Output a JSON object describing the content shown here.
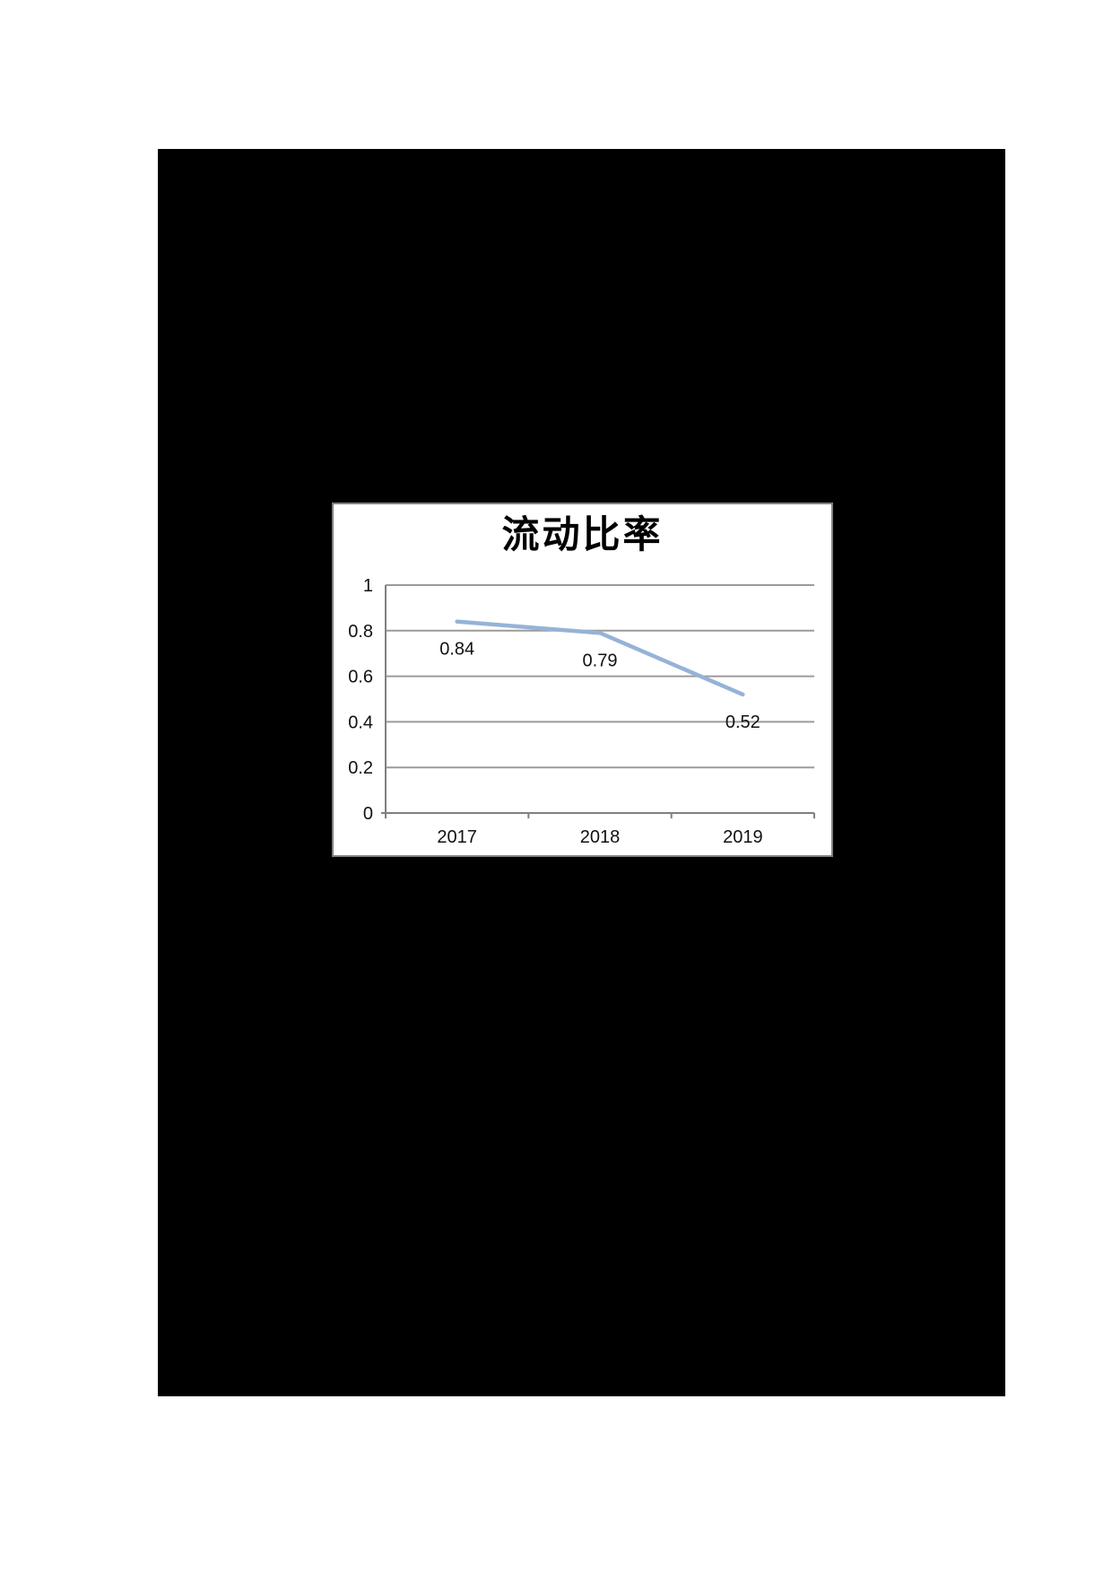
{
  "page": {
    "background_color": "#ffffff"
  },
  "image_block": {
    "background_color": "#000000"
  },
  "chart": {
    "panel_background": "#ffffff",
    "panel_border_color": "#7f7f7f",
    "axis_color": "#7f7f7f",
    "gridline_color": "#9b9b9b",
    "text_color": "#111111",
    "line_color": "#95B3D7"
  },
  "chart_data": {
    "type": "line",
    "title": "流动比率",
    "categories": [
      "2017",
      "2018",
      "2019"
    ],
    "values": [
      0.84,
      0.79,
      0.52
    ],
    "data_labels": [
      "0.84",
      "0.79",
      "0.52"
    ],
    "series": [
      {
        "name": "流动比率",
        "values": [
          0.84,
          0.79,
          0.52
        ]
      }
    ],
    "xlabel": "",
    "ylabel": "",
    "ylim": [
      0,
      1
    ],
    "y_ticks": [
      {
        "value": 0,
        "label": "0"
      },
      {
        "value": 0.2,
        "label": "0.2"
      },
      {
        "value": 0.4,
        "label": "0.4"
      },
      {
        "value": 0.6,
        "label": "0.6"
      },
      {
        "value": 0.8,
        "label": "0.8"
      },
      {
        "value": 1,
        "label": "1"
      }
    ],
    "grid": true,
    "legend": "none",
    "data_labels_visible": true
  }
}
